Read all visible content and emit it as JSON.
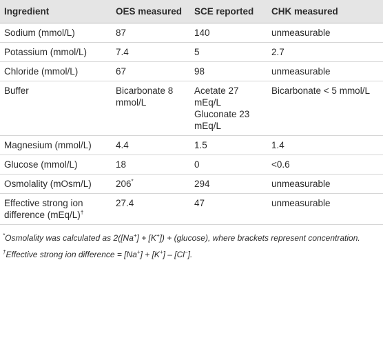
{
  "table": {
    "header": [
      "Ingredient",
      "OES measured",
      "SCE reported",
      "CHK measured"
    ],
    "rows": [
      [
        "Sodium (mmol/L)",
        "87",
        "140",
        "unmeasurable"
      ],
      [
        "Potassium (mmol/L)",
        "7.4",
        "5",
        "2.7"
      ],
      [
        "Chloride (mmol/L)",
        "67",
        "98",
        "unmeasurable"
      ],
      [
        "Buffer",
        "Bicarbonate 8 mmol/L",
        [
          "Acetate 27 mEq/L",
          "Gluconate 23 mEq/L"
        ],
        "Bicarbonate < 5 mmol/L"
      ],
      [
        "Magnesium (mmol/L)",
        "4.4",
        "1.5",
        "1.4"
      ],
      [
        "Glucose (mmol/L)",
        "18",
        "0",
        "<0.6"
      ],
      [
        "Osmolality (mOsm/L)",
        [
          "206",
          "*"
        ],
        "294",
        "unmeasurable"
      ],
      [
        [
          "Effective strong ion difference (mEq/L)",
          "†"
        ],
        "27.4",
        "47",
        "unmeasurable"
      ]
    ]
  },
  "footnotes": [
    [
      "*",
      "Osmolality was calculated as 2([Na",
      "+",
      "] + [K",
      "+",
      "]) + (glucose), where brackets represent concentration."
    ],
    [
      "†",
      "Effective strong ion difference = [Na",
      "+",
      "] + [K",
      "+",
      "] – [Cl",
      "−",
      "]."
    ]
  ]
}
